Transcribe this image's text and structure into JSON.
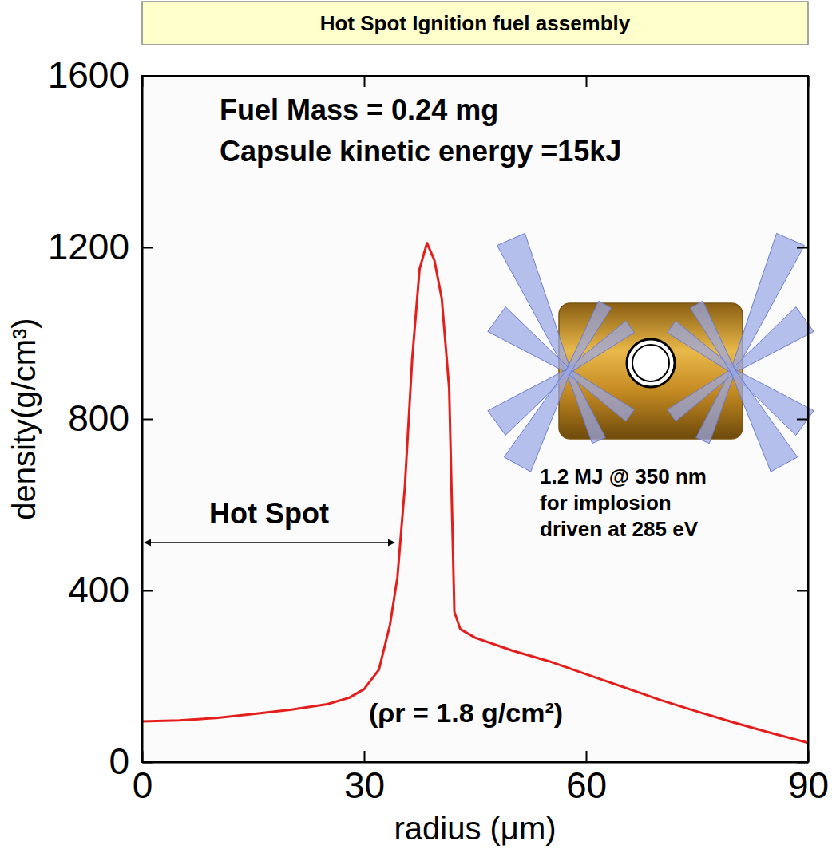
{
  "chart_data": {
    "type": "line",
    "title": "Hot Spot Ignition fuel assembly",
    "x_label": "radius (μm)",
    "y_label": "density(g/cm³)",
    "x": [
      0,
      5,
      10,
      15,
      20,
      25,
      28,
      30,
      32,
      33.5,
      34.5,
      35.5,
      36.5,
      37.5,
      38.5,
      39.5,
      40.5,
      41.5,
      42.2,
      43,
      45,
      50,
      55,
      60,
      65,
      70,
      75,
      80,
      85,
      90
    ],
    "values": [
      95,
      97,
      103,
      112,
      122,
      135,
      150,
      170,
      215,
      320,
      430,
      640,
      940,
      1150,
      1210,
      1170,
      1080,
      870,
      350,
      310,
      290,
      260,
      235,
      205,
      175,
      145,
      118,
      92,
      68,
      45
    ],
    "color": "#e41f1b",
    "xlim": [
      0,
      90
    ],
    "xticks": [
      0,
      30,
      60,
      90
    ],
    "ylim": [
      0,
      1600
    ],
    "yticks": [
      0,
      400,
      800,
      1200,
      1600
    ],
    "grid": false,
    "annotations": [
      "Fuel Mass = 0.24 mg",
      "Capsule kinetic energy =15kJ",
      "Hot Spot",
      "(ρr = 1.8 g/cm²)"
    ],
    "inset_caption": [
      "1.2 MJ @ 350 nm",
      "for implosion",
      "driven at 285 eV"
    ]
  }
}
